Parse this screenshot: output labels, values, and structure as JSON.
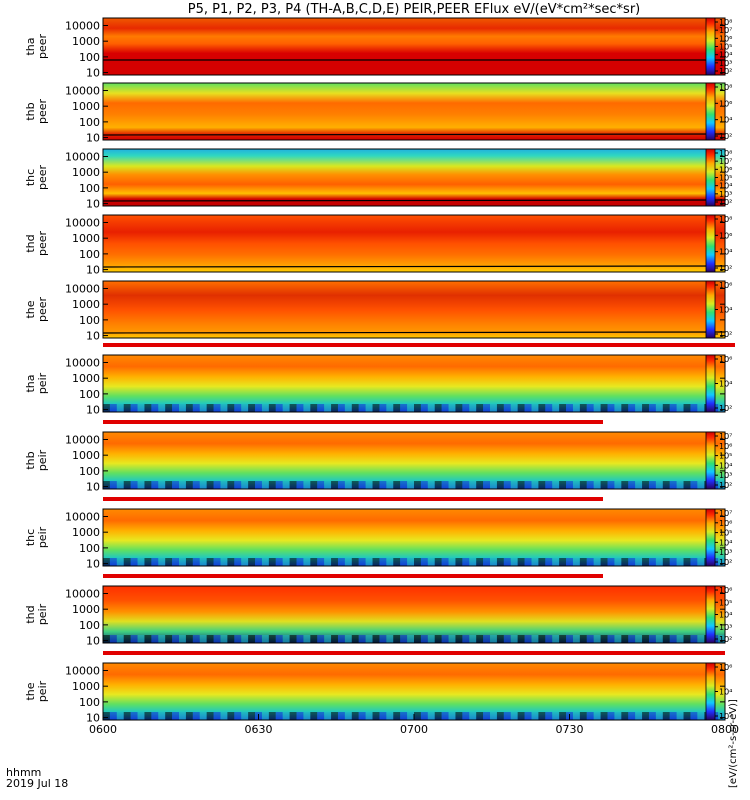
{
  "title": "P5, P1, P2, P3, P4 (TH-A,B,C,D,E) PEIR,PEER EFlux eV/(eV*cm²*sec*sr)",
  "footer": {
    "units_label": "hhmm",
    "date_label": "2019 Jul 18"
  },
  "colorbar_label": "[eV/(cm²-s-sr-eV)]",
  "chart_data": {
    "type": "heatmap",
    "title": "P5, P1, P2, P3, P4 (TH-A,B,C,D,E) PEIR,PEER EFlux eV/(eV*cm²*sec*sr)",
    "x_ticks": [
      "0600",
      "0630",
      "0700",
      "0730",
      "0800"
    ],
    "xlim": [
      "0600",
      "0800"
    ],
    "y_scale": "log",
    "y_ticks": [
      "10",
      "100",
      "1000",
      "10000"
    ],
    "ylim": [
      7,
      30000
    ],
    "colorbar_scale": "log",
    "colorbar_range": [
      10,
      10000000
    ],
    "panels": [
      {
        "probe": "tha",
        "species": "peer",
        "label1": "tha",
        "label2": "peer",
        "cbar_ticks": [
          "10²",
          "10³",
          "10⁴",
          "10⁵",
          "10⁶",
          "10⁷",
          "10⁸"
        ]
      },
      {
        "probe": "thb",
        "species": "peer",
        "label1": "thb",
        "label2": "peer",
        "cbar_ticks": [
          "10²",
          "10⁴",
          "10⁶",
          "10⁸"
        ]
      },
      {
        "probe": "thc",
        "species": "peer",
        "label1": "thc",
        "label2": "peer",
        "cbar_ticks": [
          "10²",
          "10³",
          "10⁴",
          "10⁵",
          "10⁶",
          "10⁷",
          "10⁸"
        ]
      },
      {
        "probe": "thd",
        "species": "peer",
        "label1": "thd",
        "label2": "peer",
        "cbar_ticks": [
          "10²",
          "10⁴",
          "10⁶",
          "10⁸"
        ]
      },
      {
        "probe": "the",
        "species": "peer",
        "label1": "the",
        "label2": "peer",
        "cbar_ticks": [
          "10²",
          "10⁴",
          "10⁶"
        ]
      },
      {
        "probe": "tha",
        "species": "peir",
        "label1": "tha",
        "label2": "peir",
        "cbar_ticks": [
          "10²",
          "10⁴",
          "10⁶"
        ]
      },
      {
        "probe": "thb",
        "species": "peir",
        "label1": "thb",
        "label2": "peir",
        "cbar_ticks": [
          "10²",
          "10³",
          "10⁴",
          "10⁵",
          "10⁶",
          "10⁷"
        ]
      },
      {
        "probe": "thc",
        "species": "peir",
        "label1": "thc",
        "label2": "peir",
        "cbar_ticks": [
          "10²",
          "10³",
          "10⁴",
          "10⁵",
          "10⁶",
          "10⁷"
        ]
      },
      {
        "probe": "thd",
        "species": "peir",
        "label1": "thd",
        "label2": "peir",
        "cbar_ticks": [
          "10²",
          "10³",
          "10⁴",
          "10⁵",
          "10⁶"
        ]
      },
      {
        "probe": "the",
        "species": "peir",
        "label1": "the",
        "label2": "peir",
        "cbar_ticks": [
          "10²",
          "10⁴",
          "10⁶"
        ]
      }
    ]
  }
}
